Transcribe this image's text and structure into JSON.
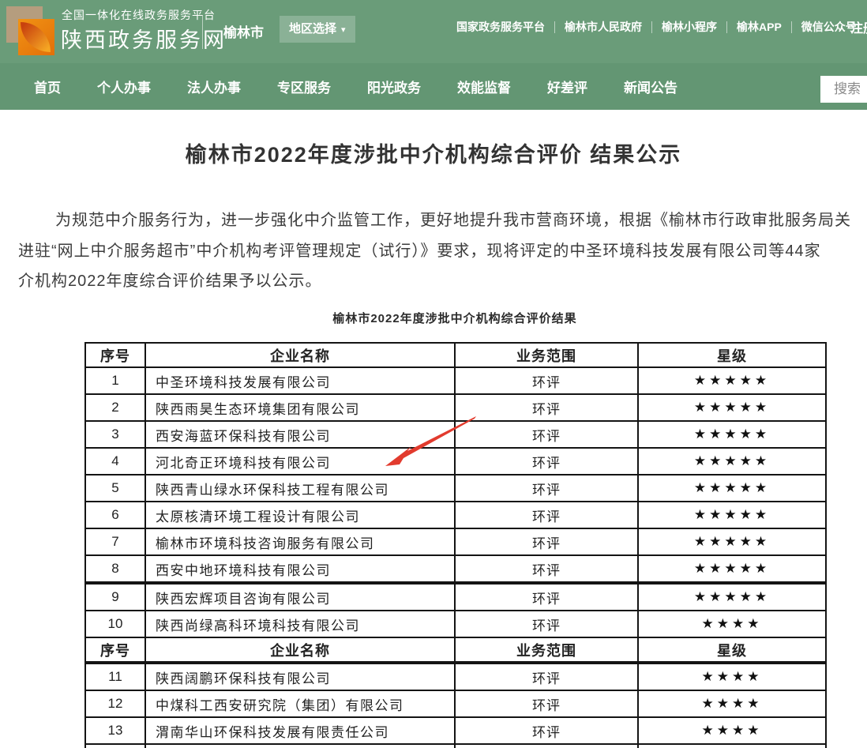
{
  "header": {
    "brand": {
      "platform_small": "全国一体化在线政务服务平台",
      "site_name": "陕西政务服务网",
      "logo_icon": "orange-leaf-logo"
    },
    "city": "榆林市",
    "region_selector_label": "地区选择",
    "region_caret": "▾",
    "top_links": [
      "国家政务服务平台",
      "榆林市人民政府",
      "榆林小程序",
      "榆林APP",
      "微信公众号"
    ],
    "register_label": "注册"
  },
  "nav": {
    "items": [
      "首页",
      "个人办事",
      "法人办事",
      "专区服务",
      "阳光政务",
      "效能监督",
      "好差评",
      "新闻公告"
    ],
    "search_placeholder": "搜索"
  },
  "article": {
    "title": "榆林市2022年度涉批中介机构综合评价 结果公示",
    "paragraph_lines": [
      "为规范中介服务行为，进一步强化中介监管工作，更好地提升我市营商环境，根据《榆林市行政审批服务局关",
      "进驻“网上中介服务超市”中介机构考评管理规定（试行）》要求，现将评定的中圣环境科技发展有限公司等44家",
      "介机构2022年度综合评价结果予以公示。"
    ],
    "table_caption": "榆林市2022年度涉批中介机构综合评价结果"
  },
  "table": {
    "headers": [
      "序号",
      "企业名称",
      "业务范围",
      "星级"
    ],
    "star_char": "★",
    "header_repeat_after": 10,
    "rows": [
      {
        "no": "1",
        "name": "中圣环境科技发展有限公司",
        "scope": "环评",
        "stars": 5
      },
      {
        "no": "2",
        "name": "陕西雨昊生态环境集团有限公司",
        "scope": "环评",
        "stars": 5
      },
      {
        "no": "3",
        "name": "西安海蓝环保科技有限公司",
        "scope": "环评",
        "stars": 5
      },
      {
        "no": "4",
        "name": "河北奇正环境科技有限公司",
        "scope": "环评",
        "stars": 5
      },
      {
        "no": "5",
        "name": "陕西青山绿水环保科技工程有限公司",
        "scope": "环评",
        "stars": 5
      },
      {
        "no": "6",
        "name": "太原核清环境工程设计有限公司",
        "scope": "环评",
        "stars": 5
      },
      {
        "no": "7",
        "name": "榆林市环境科技咨询服务有限公司",
        "scope": "环评",
        "stars": 5
      },
      {
        "no": "8",
        "name": "西安中地环境科技有限公司",
        "scope": "环评",
        "stars": 5
      },
      {
        "no": "9",
        "name": "陕西宏辉项目咨询有限公司",
        "scope": "环评",
        "stars": 5
      },
      {
        "no": "10",
        "name": "陕西尚绿高科环境科技有限公司",
        "scope": "环评",
        "stars": 4
      },
      {
        "no": "11",
        "name": "陕西阔鹏环保科技有限公司",
        "scope": "环评",
        "stars": 4
      },
      {
        "no": "12",
        "name": "中煤科工西安研究院（集团）有限公司",
        "scope": "环评",
        "stars": 4
      },
      {
        "no": "13",
        "name": "渭南华山环保科技发展有限责任公司",
        "scope": "环评",
        "stars": 4
      }
    ]
  },
  "annotation": {
    "shape": "hand-drawn-arrow",
    "arrow_color": "#e23b2e",
    "points_at_row_no": "4"
  },
  "colors": {
    "header_green": "#6a9c79",
    "nav_green": "#639673",
    "logo_tan": "#b59d7e",
    "logo_orange": "#e8820c",
    "search_text_gray": "#8a8a8a",
    "table_border_black": "#141414",
    "arrow_red": "#e23b2e"
  }
}
